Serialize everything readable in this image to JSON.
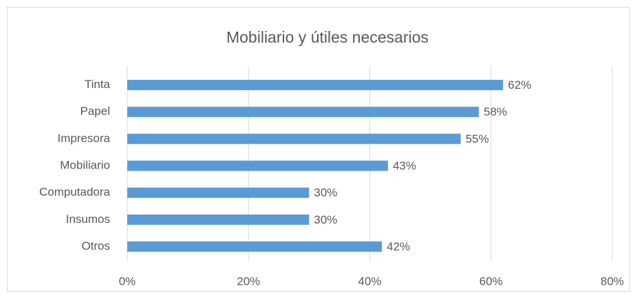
{
  "chart_data": {
    "type": "bar",
    "orientation": "horizontal",
    "title": "Mobiliario y útiles necesarios",
    "categories": [
      "Tinta",
      "Papel",
      "Impresora",
      "Mobiliario",
      "Computadora",
      "Insumos",
      "Otros"
    ],
    "values": [
      62,
      58,
      55,
      43,
      30,
      30,
      42
    ],
    "value_labels": [
      "62%",
      "58%",
      "55%",
      "43%",
      "30%",
      "30%",
      "42%"
    ],
    "color": "#5b9bd5",
    "xlim": [
      0,
      80
    ],
    "xticks": [
      {
        "value": 0,
        "label": "0%"
      },
      {
        "value": 20,
        "label": "20%"
      },
      {
        "value": 40,
        "label": "40%"
      },
      {
        "value": 60,
        "label": "60%"
      },
      {
        "value": 80,
        "label": "80%"
      }
    ],
    "grid": true
  }
}
